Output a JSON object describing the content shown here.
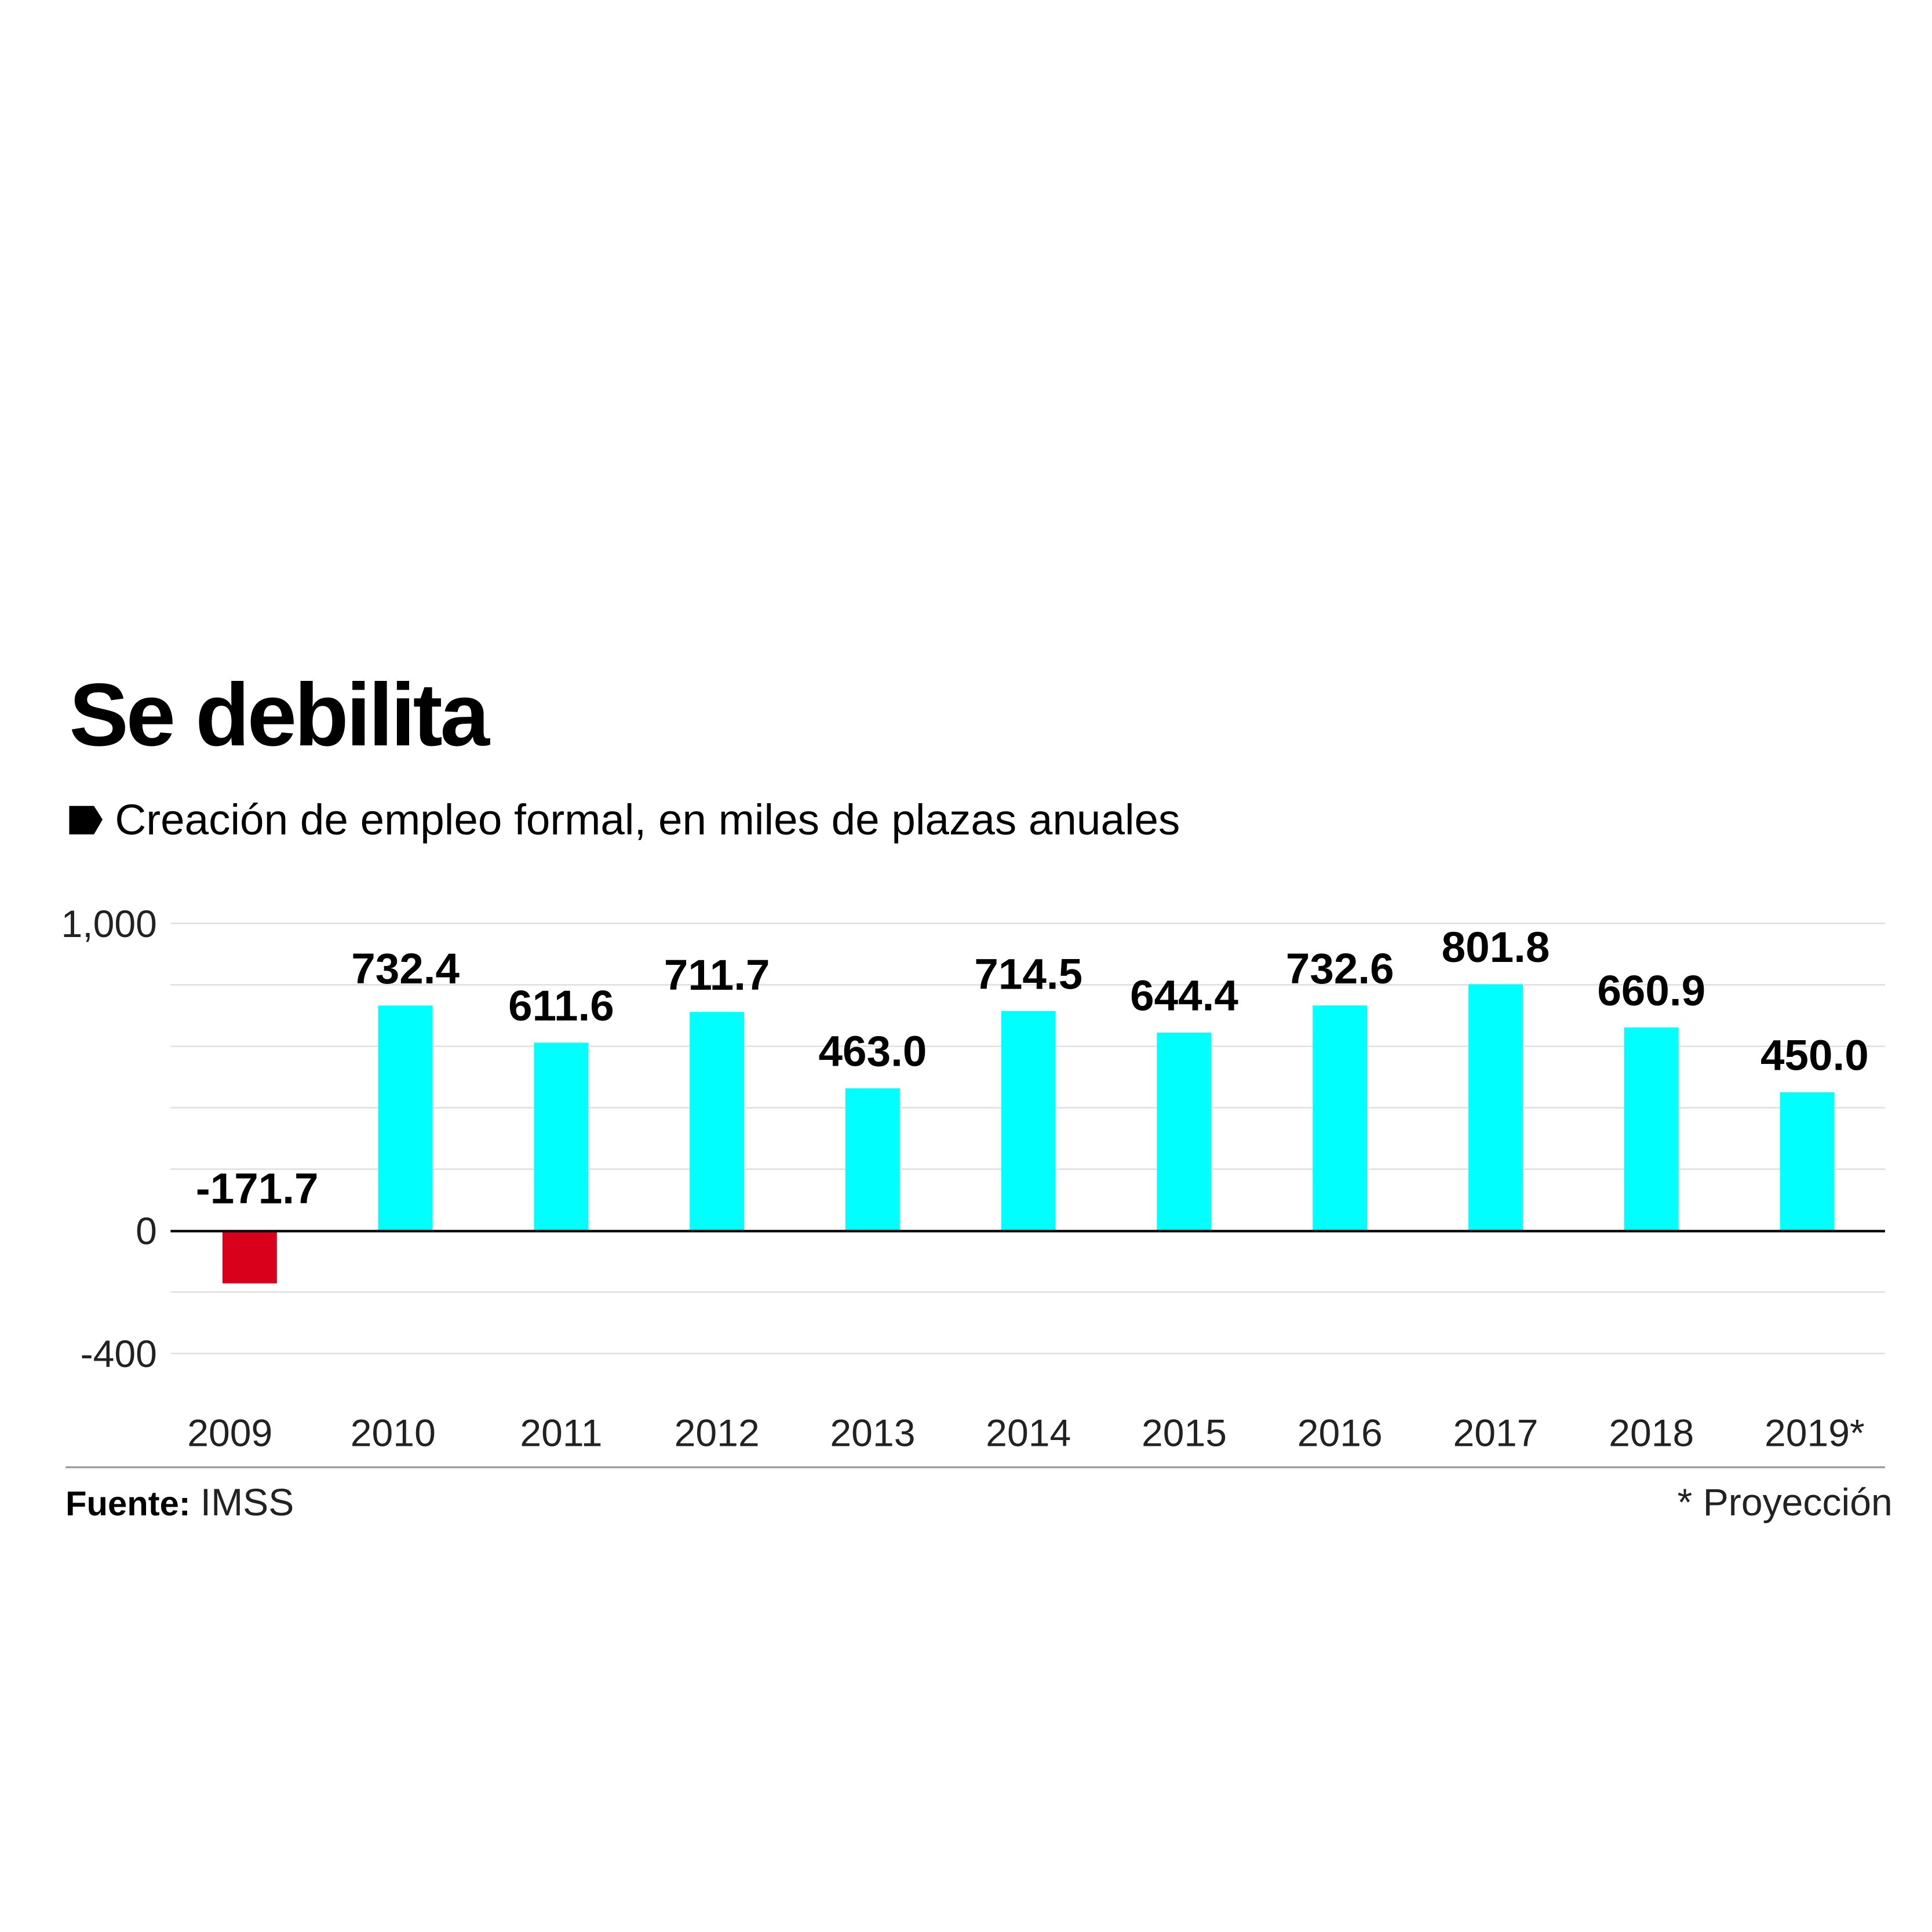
{
  "title": "Se debilita",
  "subtitle": "Creación de empleo formal, en miles de plazas anuales",
  "source_label": "Fuente:",
  "source": "IMSS",
  "footnote": "* Proyección",
  "colors": {
    "positive": "#00FFFF",
    "negative": "#D9001B",
    "text": "#000000",
    "grid": "#E0E0E0"
  },
  "chart_data": {
    "type": "bar",
    "categories": [
      "2009",
      "2010",
      "2011",
      "2012",
      "2013",
      "2014",
      "2015",
      "2016",
      "2017",
      "2018",
      "2019*"
    ],
    "values": [
      -171.7,
      732.4,
      611.6,
      711.7,
      463.0,
      714.5,
      644.4,
      732.6,
      801.8,
      660.9,
      450.0
    ],
    "data_labels": [
      "-171.7",
      "732.4",
      "611.6",
      "711.7",
      "463.0",
      "714.5",
      "644.4",
      "732.6",
      "801.8",
      "660.9",
      "450.0"
    ],
    "ylim": [
      -400,
      1000
    ],
    "yticks": [
      -400,
      0,
      1000
    ],
    "ytick_labels": [
      "-400",
      "0",
      "1,000"
    ],
    "grid_step": 200,
    "grid": true,
    "xlabel": "",
    "ylabel": ""
  }
}
